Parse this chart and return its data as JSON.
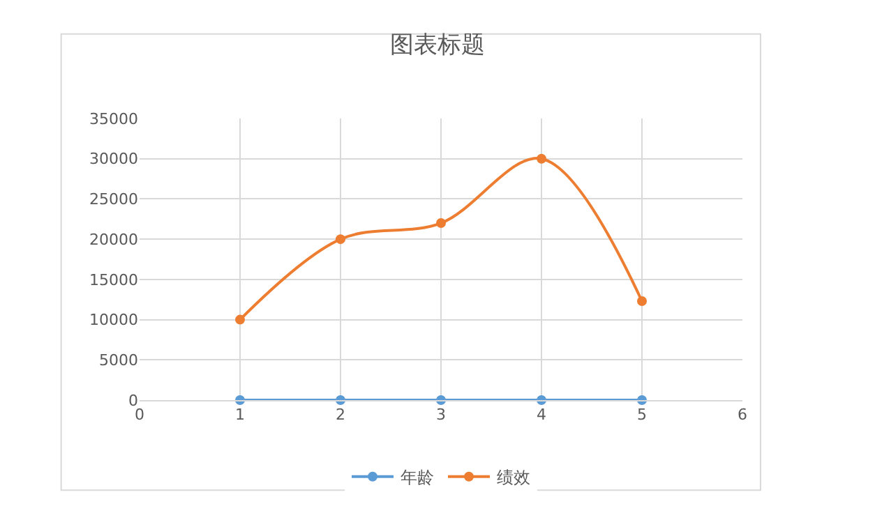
{
  "chart_data": {
    "type": "line",
    "title": "图表标题",
    "x": [
      1,
      2,
      3,
      4,
      5
    ],
    "series": [
      {
        "name": "年龄",
        "color": "#5b9bd5",
        "values": [
          0,
          0,
          0,
          0,
          0
        ]
      },
      {
        "name": "绩效",
        "color": "#ed7d31",
        "values": [
          10000,
          20000,
          22000,
          30000,
          12300
        ]
      }
    ],
    "xlim": [
      0,
      6
    ],
    "xticks": [
      0,
      1,
      2,
      3,
      4,
      5,
      6
    ],
    "ylim": [
      0,
      35000
    ],
    "yticks": [
      0,
      5000,
      10000,
      15000,
      20000,
      25000,
      30000,
      35000
    ],
    "grid": true,
    "legend": "bottom",
    "marker": "circle",
    "line_style": "solid"
  }
}
